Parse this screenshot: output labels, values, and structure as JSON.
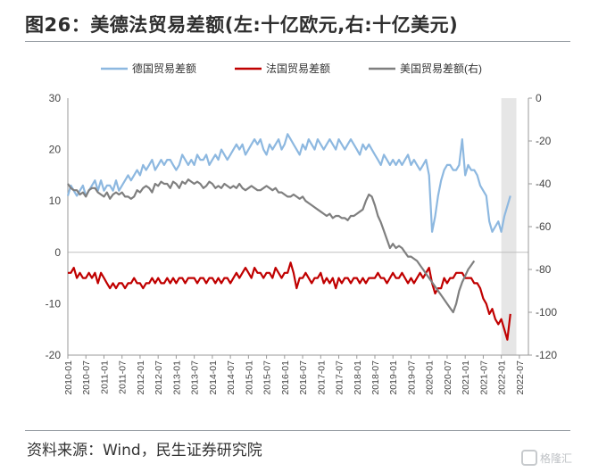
{
  "title": "图26：美德法贸易差额(左:十亿欧元,右:十亿美元)",
  "source": "资料来源：Wind，民生证券研究院",
  "watermark_text": "格隆汇",
  "colors": {
    "germany": "#8db8e0",
    "france": "#c00000",
    "us": "#7f7f7f",
    "shade": "#e6e6e6",
    "axis": "#999999"
  },
  "chart_data": {
    "type": "line",
    "title": "图26：美德法贸易差额(左:十亿欧元,右:十亿美元)",
    "x_ticks": [
      "2010-01",
      "2010-07",
      "2011-01",
      "2011-07",
      "2012-01",
      "2012-07",
      "2013-01",
      "2013-07",
      "2014-01",
      "2014-07",
      "2015-01",
      "2015-07",
      "2016-01",
      "2016-07",
      "2017-01",
      "2017-07",
      "2018-01",
      "2018-07",
      "2019-01",
      "2019-07",
      "2020-01",
      "2020-07",
      "2021-01",
      "2021-07",
      "2022-01",
      "2022-07"
    ],
    "x_range": [
      "2010-01",
      "2022-10"
    ],
    "y_left": {
      "range": [
        -20,
        30
      ],
      "ticks": [
        "30",
        "20",
        "10",
        "0",
        "-10",
        "-20"
      ]
    },
    "y_right": {
      "range": [
        -120,
        0
      ],
      "ticks": [
        "0",
        "-20",
        "-40",
        "-60",
        "-80",
        "-100",
        "-120"
      ]
    },
    "shaded_region": {
      "from": "2022-01",
      "to": "2022-06"
    },
    "legend": {
      "placement": "top",
      "labels": [
        "德国贸易差额",
        "法国贸易差额",
        "美国贸易差额(右)"
      ]
    },
    "series": [
      {
        "name": "德国贸易差额",
        "axis": "left",
        "color": "#8db8e0",
        "start": "2010-01",
        "values": [
          11,
          13,
          12,
          11,
          12,
          13,
          11,
          12,
          13,
          14,
          12,
          14,
          12,
          13,
          13,
          12,
          14,
          12,
          13,
          14,
          15,
          14,
          15,
          16,
          15,
          17,
          16,
          17,
          18,
          16,
          17,
          18,
          17,
          18,
          18,
          17,
          16,
          17,
          19,
          18,
          17,
          18,
          17,
          19,
          18,
          18,
          19,
          17,
          18,
          19,
          18,
          20,
          19,
          18,
          19,
          20,
          21,
          20,
          21,
          19,
          20,
          21,
          22,
          21,
          22,
          20,
          19,
          21,
          20,
          21,
          22,
          20,
          21,
          23,
          22,
          21,
          20,
          19,
          21,
          20,
          22,
          21,
          20,
          22,
          21,
          20,
          21,
          22,
          21,
          20,
          22,
          21,
          20,
          21,
          22,
          21,
          20,
          19,
          21,
          20,
          21,
          20,
          19,
          18,
          17,
          19,
          18,
          17,
          18,
          17,
          18,
          17,
          18,
          19,
          17,
          18,
          17,
          16,
          17,
          18,
          15,
          4,
          7,
          11,
          14,
          16,
          17,
          17,
          16,
          16,
          17,
          22,
          15,
          17,
          16,
          16,
          15,
          13,
          12,
          11,
          6,
          4,
          5,
          6,
          4,
          7,
          9,
          11
        ]
      },
      {
        "name": "法国贸易差额",
        "axis": "left",
        "color": "#c00000",
        "start": "2010-01",
        "values": [
          -4,
          -4,
          -3,
          -5,
          -4,
          -5,
          -5,
          -4,
          -5,
          -4,
          -6,
          -4,
          -5,
          -6,
          -7,
          -6,
          -7,
          -6,
          -6,
          -7,
          -6,
          -6,
          -5,
          -6,
          -6,
          -7,
          -6,
          -6,
          -5,
          -6,
          -5,
          -6,
          -6,
          -5,
          -6,
          -5,
          -6,
          -5,
          -5,
          -6,
          -5,
          -5,
          -5,
          -6,
          -5,
          -5,
          -6,
          -5,
          -5,
          -6,
          -5,
          -6,
          -5,
          -5,
          -6,
          -5,
          -4,
          -5,
          -4,
          -3,
          -4,
          -5,
          -3,
          -4,
          -4,
          -5,
          -4,
          -4,
          -5,
          -3,
          -4,
          -5,
          -4,
          -4,
          -2,
          -4,
          -7,
          -5,
          -5,
          -4,
          -5,
          -6,
          -5,
          -5,
          -4,
          -6,
          -5,
          -6,
          -5,
          -7,
          -5,
          -6,
          -5,
          -5,
          -6,
          -5,
          -5,
          -6,
          -5,
          -6,
          -5,
          -5,
          -5,
          -4,
          -5,
          -5,
          -6,
          -5,
          -4,
          -5,
          -5,
          -4,
          -5,
          -6,
          -5,
          -6,
          -5,
          -4,
          -5,
          -4,
          -3,
          -6,
          -8,
          -7,
          -7,
          -5,
          -6,
          -5,
          -5,
          -4,
          -4,
          -4,
          -5,
          -5,
          -5,
          -6,
          -6,
          -7,
          -9,
          -10,
          -12,
          -11,
          -13,
          -14,
          -13,
          -15,
          -17,
          -12
        ]
      },
      {
        "name": "美国贸易差额(右)",
        "axis": "right",
        "color": "#7f7f7f",
        "start": "2010-01",
        "values": [
          -40,
          -42,
          -43,
          -43,
          -45,
          -44,
          -46,
          -43,
          -42,
          -42,
          -44,
          -45,
          -46,
          -44,
          -47,
          -45,
          -44,
          -45,
          -44,
          -46,
          -46,
          -47,
          -46,
          -43,
          -44,
          -42,
          -41,
          -42,
          -44,
          -40,
          -41,
          -39,
          -40,
          -40,
          -42,
          -39,
          -40,
          -42,
          -39,
          -40,
          -38,
          -39,
          -40,
          -39,
          -40,
          -42,
          -41,
          -39,
          -40,
          -42,
          -41,
          -42,
          -40,
          -41,
          -42,
          -41,
          -42,
          -40,
          -42,
          -43,
          -42,
          -41,
          -42,
          -43,
          -43,
          -42,
          -41,
          -42,
          -43,
          -42,
          -44,
          -44,
          -45,
          -46,
          -46,
          -45,
          -46,
          -47,
          -46,
          -48,
          -49,
          -50,
          -51,
          -52,
          -53,
          -54,
          -55,
          -54,
          -56,
          -55,
          -55,
          -56,
          -56,
          -57,
          -55,
          -55,
          -54,
          -53,
          -52,
          -48,
          -45,
          -46,
          -50,
          -55,
          -58,
          -62,
          -66,
          -70,
          -68,
          -70,
          -69,
          -70,
          -72,
          -74,
          -74,
          -75,
          -76,
          -78,
          -80,
          -82,
          -84,
          -86,
          -88,
          -90,
          -92,
          -94,
          -96,
          -98,
          -100,
          -96,
          -90,
          -86,
          -83,
          -80,
          -78,
          -76
        ]
      }
    ]
  }
}
